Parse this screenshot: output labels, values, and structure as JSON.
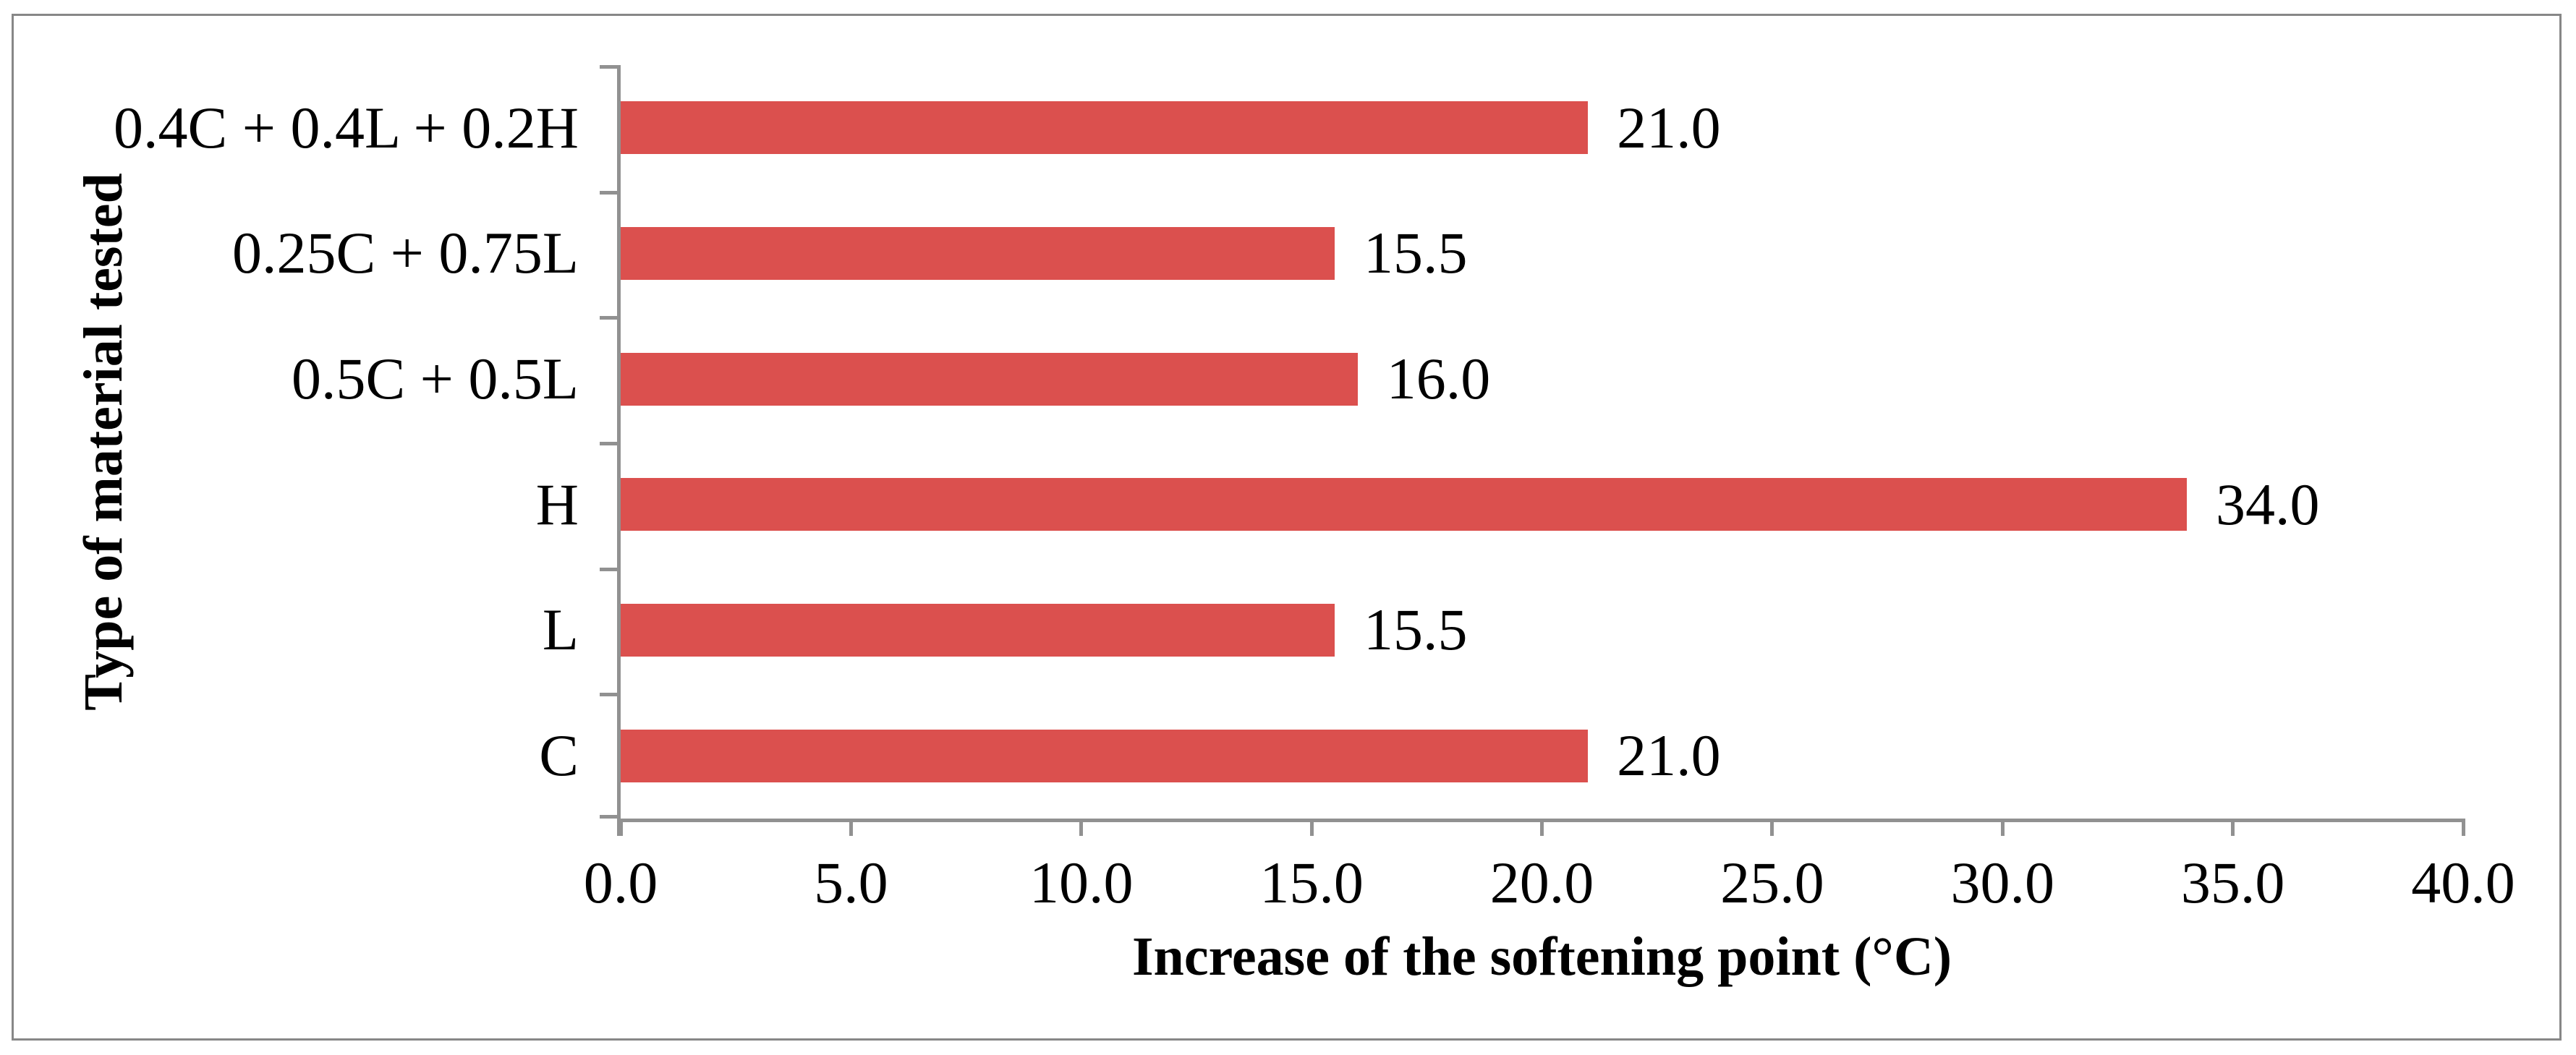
{
  "chart_data": {
    "type": "bar",
    "orientation": "horizontal",
    "title": "",
    "xlabel": "Increase of the softening point (°C)",
    "ylabel": "Type of material tested",
    "categories": [
      "0.4C + 0.4L + 0.2H",
      "0.25C + 0.75L",
      "0.5C + 0.5L",
      "H",
      "L",
      "C"
    ],
    "values": [
      21.0,
      15.5,
      16.0,
      34.0,
      15.5,
      21.0
    ],
    "value_labels": [
      "21.0",
      "15.5",
      "16.0",
      "34.0",
      "15.5",
      "21.0"
    ],
    "xlim": [
      0.0,
      40.0
    ],
    "xticks": [
      0.0,
      5.0,
      10.0,
      15.0,
      20.0,
      25.0,
      30.0,
      35.0,
      40.0
    ],
    "xtick_labels": [
      "0.0",
      "5.0",
      "10.0",
      "15.0",
      "20.0",
      "25.0",
      "30.0",
      "35.0",
      "40.0"
    ],
    "grid": false,
    "legend": false,
    "bar_color": "#DB504E",
    "axis_color": "#919191",
    "frame_color": "#878787",
    "text_color": "#000000",
    "background_color": "#FFFFFF"
  }
}
